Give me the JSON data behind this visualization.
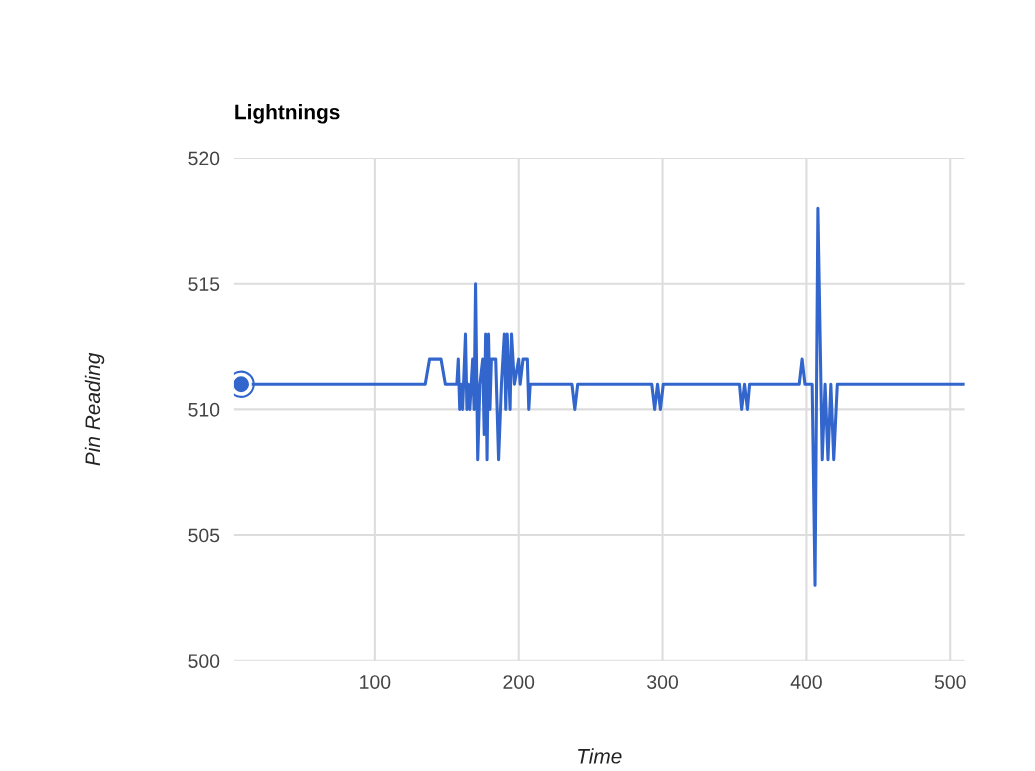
{
  "chart_data": {
    "type": "line",
    "title": "Lightnings",
    "xlabel": "Time",
    "ylabel": "Pin Reading",
    "xlim": [
      2,
      510
    ],
    "xticks": [
      100,
      200,
      300,
      400,
      500
    ],
    "ylim": [
      500,
      520
    ],
    "yticks": [
      500,
      505,
      510,
      515,
      520
    ],
    "grid": true,
    "series": [
      {
        "color": "#3366cc",
        "x": [
          7,
          135,
          138,
          146,
          149,
          157,
          158,
          159,
          160,
          161,
          163,
          164,
          165,
          166,
          168,
          169,
          170,
          171.5,
          173,
          175,
          176,
          177,
          178,
          179,
          180,
          181,
          184,
          186,
          188,
          190,
          191,
          192,
          194,
          195,
          197,
          200,
          201,
          203,
          206,
          207,
          208,
          237,
          239,
          241,
          292.5,
          294.5,
          296.5,
          298.5,
          300.5,
          353.5,
          355,
          357,
          359,
          360.5,
          395,
          397,
          399,
          404,
          406,
          408,
          411,
          413,
          415,
          417,
          419,
          421.5,
          510
        ],
        "values": [
          511,
          511,
          512,
          512,
          511,
          511,
          512,
          510,
          511,
          510,
          513,
          510,
          511,
          510,
          512,
          510,
          515,
          508,
          511,
          512,
          509,
          513,
          508,
          513,
          510,
          512,
          512,
          508,
          511,
          513,
          510,
          513,
          510,
          513,
          511,
          512,
          511,
          512,
          512,
          510,
          511,
          511,
          510,
          511,
          511,
          510,
          511,
          510,
          511,
          511,
          510,
          511,
          510,
          511,
          511,
          512,
          511,
          511,
          503,
          518,
          508,
          511,
          508,
          511,
          508,
          511,
          511
        ]
      },
      {
        "type": "scatter",
        "color": "#3366cc",
        "marker": "circle",
        "x": [
          7
        ],
        "values": [
          511
        ]
      }
    ]
  }
}
